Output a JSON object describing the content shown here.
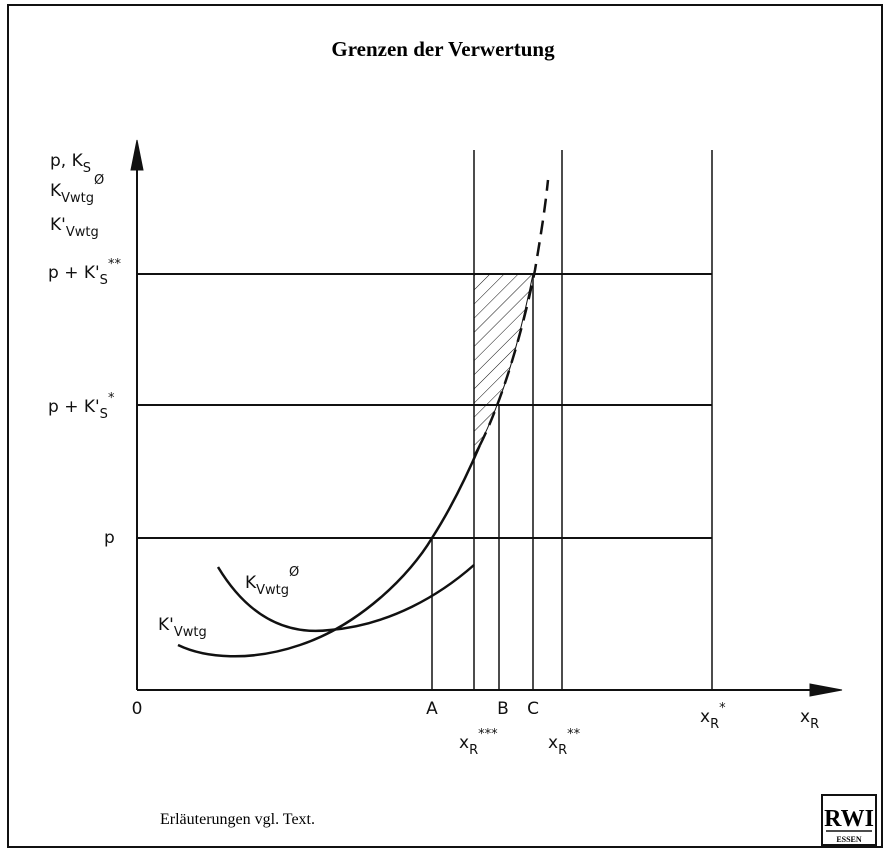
{
  "title": "Grenzen der Verwertung",
  "y_axis_labels": [
    {
      "text": "p, K",
      "sub": "S"
    },
    {
      "text": "K",
      "sub": "Vwtg",
      "sup": "Ø"
    },
    {
      "text": "K'",
      "sub": "Vwtg"
    }
  ],
  "levels": [
    {
      "text": "p + K'",
      "sub": "S",
      "sup": "**"
    },
    {
      "text": "p + K'",
      "sub": "S",
      "sup": "*"
    },
    {
      "text": "p"
    }
  ],
  "x_labels": {
    "origin": "0",
    "A": "A",
    "B": "B",
    "C": "C",
    "xr3": {
      "text": "x",
      "sub": "R",
      "sup": "***"
    },
    "xr2": {
      "text": "x",
      "sub": "R",
      "sup": "**"
    },
    "xr1": {
      "text": "x",
      "sub": "R",
      "sup": "*"
    },
    "axis": {
      "text": "x",
      "sub": "R"
    }
  },
  "curves": {
    "average": {
      "text": "K",
      "sub": "Vwtg",
      "sup": "Ø"
    },
    "marginal": {
      "text": "K'",
      "sub": "Vwtg"
    }
  },
  "footer": "Erläuterungen vgl. Text.",
  "logo": {
    "top": "RWI",
    "bottom": "ESSEN"
  }
}
